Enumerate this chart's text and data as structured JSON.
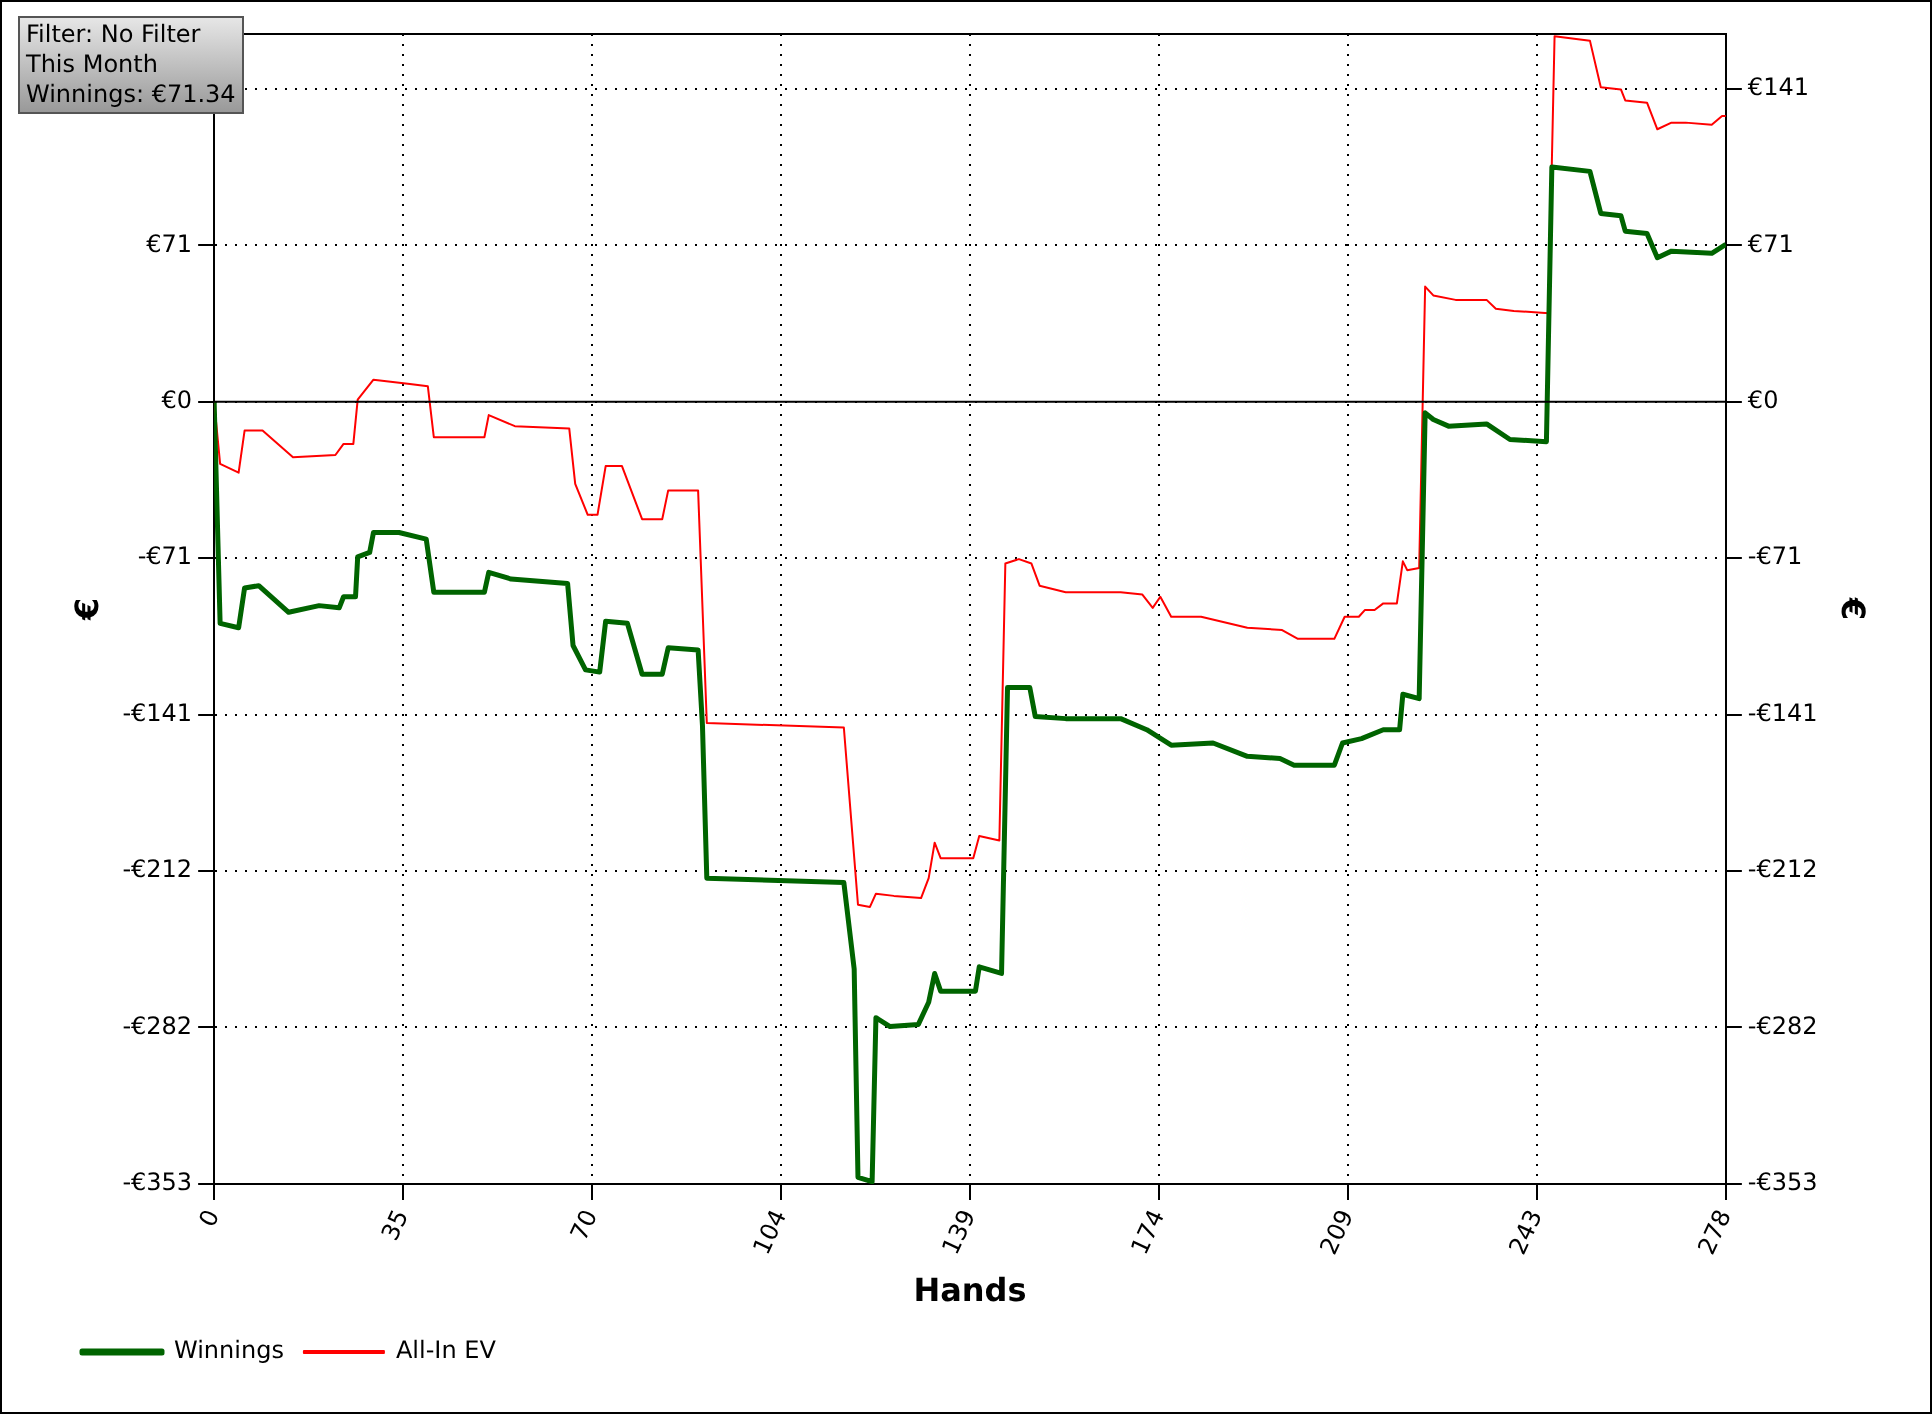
{
  "chart_data": {
    "type": "line",
    "xlabel": "Hands",
    "ylabel": "€",
    "y2label": "€",
    "annotations": [
      "Filter: No Filter",
      "This Month",
      "Winnings: €71.34"
    ],
    "xlim": [
      0,
      278
    ],
    "xticks": [
      {
        "value": 0,
        "label": "0"
      },
      {
        "value": 34.75,
        "label": "35"
      },
      {
        "value": 69.5,
        "label": "70"
      },
      {
        "value": 104.25,
        "label": "104"
      },
      {
        "value": 139,
        "label": "139"
      },
      {
        "value": 173.75,
        "label": "174"
      },
      {
        "value": 208.5,
        "label": "209"
      },
      {
        "value": 243.25,
        "label": "243"
      },
      {
        "value": 278,
        "label": "278"
      }
    ],
    "ylim": [
      -353,
      166
    ],
    "yticks": [
      {
        "value": -353,
        "label": "-€353"
      },
      {
        "value": -282.4,
        "label": "-€282"
      },
      {
        "value": -211.8,
        "label": "-€212"
      },
      {
        "value": -141.2,
        "label": "-€141"
      },
      {
        "value": -70.6,
        "label": "-€71"
      },
      {
        "value": 0,
        "label": "€0"
      },
      {
        "value": 70.6,
        "label": "€71"
      },
      {
        "value": 141.2,
        "label": null
      }
    ],
    "y2lim": [
      -353,
      166
    ],
    "y2ticks": [
      {
        "value": -353,
        "label": "-€353"
      },
      {
        "value": -282.4,
        "label": "-€282"
      },
      {
        "value": -211.8,
        "label": "-€212"
      },
      {
        "value": -141.2,
        "label": "-€141"
      },
      {
        "value": -70.6,
        "label": "-€71"
      },
      {
        "value": 0,
        "label": "€0"
      },
      {
        "value": 70.6,
        "label": "€71"
      },
      {
        "value": 141.2,
        "label": "€141"
      }
    ],
    "grid": true,
    "legend": "bottom left",
    "marker": "none",
    "line_style": "solid",
    "ref_lines": [
      {
        "axis": "y",
        "value": 0,
        "color": "#000000"
      }
    ],
    "series": [
      {
        "name": "Winnings",
        "color": "#006400",
        "x": [
          0,
          1.1,
          4.5,
          5.6,
          8.2,
          13.7,
          19.3,
          23,
          23.8,
          26,
          26.4,
          28.6,
          29.3,
          34,
          39,
          40.4,
          49.7,
          50.5,
          54.6,
          65,
          66,
          68.3,
          70.9,
          72,
          76,
          78.7,
          82.4,
          83.5,
          89,
          89.8,
          90.6,
          115.8,
          117.7,
          118.4,
          121,
          121.7,
          124.3,
          129.5,
          131.4,
          132.5,
          133.6,
          140,
          140.7,
          144.8,
          145.9,
          150,
          151,
          156.6,
          166.7,
          171.5,
          176,
          183.7,
          190,
          196,
          198.6,
          206,
          207.5,
          211,
          215,
          218,
          218.6,
          221.6,
          222.7,
          224.2,
          227,
          234,
          238.3,
          245,
          246,
          253,
          255,
          258.7,
          259.5,
          263.5,
          265.4,
          268,
          275.4,
          278
        ],
        "values": [
          0,
          -100,
          -102,
          -84,
          -83,
          -95,
          -92,
          -93,
          -88,
          -88,
          -70,
          -68,
          -59,
          -59,
          -62,
          -86,
          -86,
          -77,
          -80,
          -82,
          -110,
          -121,
          -122,
          -99,
          -100,
          -123,
          -123,
          -111,
          -112,
          -146,
          -215,
          -217,
          -256,
          -350,
          -352,
          -278,
          -282,
          -281,
          -271,
          -258,
          -266,
          -266,
          -255,
          -258,
          -129,
          -129,
          -142,
          -143,
          -143,
          -148,
          -155,
          -154,
          -160,
          -161,
          -164,
          -164,
          -154,
          -152,
          -148,
          -148,
          -132,
          -134,
          -5,
          -8,
          -11,
          -10,
          -17,
          -18,
          106,
          104,
          85,
          84,
          77,
          76,
          65,
          68,
          67,
          71
        ]
      },
      {
        "name": "All-In EV",
        "color": "#ff0000",
        "x": [
          0,
          1.1,
          4.5,
          5.6,
          8.9,
          14.5,
          22.3,
          23.8,
          25.6,
          26.4,
          29.3,
          36,
          39.3,
          40.4,
          49.7,
          50.5,
          55.3,
          65.3,
          66.4,
          68.7,
          70.5,
          72,
          75,
          78.7,
          82.4,
          83.5,
          89,
          90.6,
          115.8,
          118.4,
          120.6,
          121.7,
          125,
          130,
          131.4,
          132.5,
          133.6,
          139.6,
          140.7,
          144.4,
          145.5,
          148,
          150.3,
          151.8,
          156.6,
          166.7,
          170.7,
          172.6,
          174,
          176,
          181.5,
          190,
          196.4,
          199.3,
          206,
          207.9,
          210.5,
          211.6,
          213.4,
          215,
          217.5,
          218.6,
          219.4,
          221.6,
          222.7,
          224.2,
          228.3,
          234,
          235.7,
          239,
          245.4,
          246.5,
          253,
          255,
          258.7,
          259.5,
          263.5,
          265.4,
          268,
          270.6,
          275.4,
          277.3,
          278
        ],
        "values": [
          0,
          -28,
          -32,
          -13,
          -13,
          -25,
          -24,
          -19,
          -19,
          1,
          10,
          8,
          7,
          -16,
          -16,
          -6,
          -11,
          -12,
          -37,
          -51,
          -51,
          -29,
          -29,
          -53,
          -53,
          -40,
          -40,
          -145,
          -147,
          -227,
          -228,
          -222,
          -223,
          -224,
          -215,
          -199,
          -206,
          -206,
          -196,
          -198,
          -73,
          -71,
          -73,
          -83,
          -86,
          -86,
          -87,
          -93,
          -88,
          -97,
          -97,
          -102,
          -103,
          -107,
          -107,
          -97,
          -97,
          -94,
          -94,
          -91,
          -91,
          -72,
          -76,
          -75,
          52,
          48,
          46,
          46,
          42,
          41,
          40,
          165,
          163,
          142,
          141,
          136,
          135,
          123,
          126,
          126,
          125,
          129,
          129
        ]
      }
    ]
  }
}
